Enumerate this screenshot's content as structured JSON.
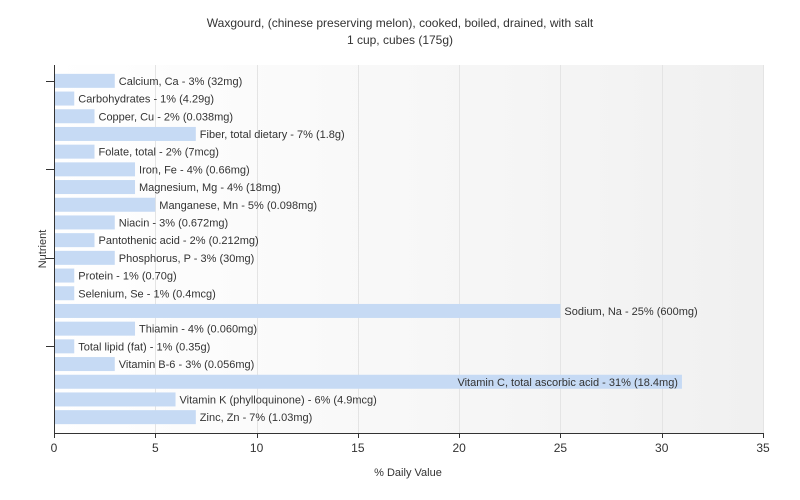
{
  "chart_data": {
    "type": "bar",
    "orientation": "horizontal",
    "title": "Waxgourd, (chinese preserving melon), cooked, boiled, drained, with salt",
    "subtitle": "1 cup, cubes (175g)",
    "xlabel": "% Daily Value",
    "ylabel": "Nutrient",
    "xlim": [
      0,
      35
    ],
    "xticks": [
      0,
      5,
      10,
      15,
      20,
      25,
      30,
      35
    ],
    "grid": "vertical",
    "legend": "none",
    "categories": [
      "Calcium, Ca",
      "Carbohydrates",
      "Copper, Cu",
      "Fiber, total dietary",
      "Folate, total",
      "Iron, Fe",
      "Magnesium, Mg",
      "Manganese, Mn",
      "Niacin",
      "Pantothenic acid",
      "Phosphorus, P",
      "Protein",
      "Selenium, Se",
      "Sodium, Na",
      "Thiamin",
      "Total lipid (fat)",
      "Vitamin B-6",
      "Vitamin C, total ascorbic acid",
      "Vitamin K (phylloquinone)",
      "Zinc, Zn"
    ],
    "values": [
      3,
      1,
      2,
      7,
      2,
      4,
      4,
      5,
      3,
      2,
      3,
      1,
      1,
      25,
      4,
      1,
      3,
      31,
      6,
      7
    ],
    "data_labels": [
      "Calcium, Ca - 3% (32mg)",
      "Carbohydrates - 1% (4.29g)",
      "Copper, Cu - 2% (0.038mg)",
      "Fiber, total dietary - 7% (1.8g)",
      "Folate, total - 2% (7mcg)",
      "Iron, Fe - 4% (0.66mg)",
      "Magnesium, Mg - 4% (18mg)",
      "Manganese, Mn - 5% (0.098mg)",
      "Niacin - 3% (0.672mg)",
      "Pantothenic acid - 2% (0.212mg)",
      "Phosphorus, P - 3% (30mg)",
      "Protein - 1% (0.70g)",
      "Selenium, Se - 1% (0.4mcg)",
      "Sodium, Na - 25% (600mg)",
      "Thiamin - 4% (0.060mg)",
      "Total lipid (fat) - 1% (0.35g)",
      "Vitamin B-6 - 3% (0.056mg)",
      "Vitamin C, total ascorbic acid - 31% (18.4mg)",
      "Vitamin K (phylloquinone) - 6% (4.9mcg)",
      "Zinc, Zn - 7% (1.03mg)"
    ]
  },
  "colors": {
    "bar": "#c6daf4",
    "axis": "#333333",
    "grid": "#e4e4e4",
    "text": "#333333"
  }
}
